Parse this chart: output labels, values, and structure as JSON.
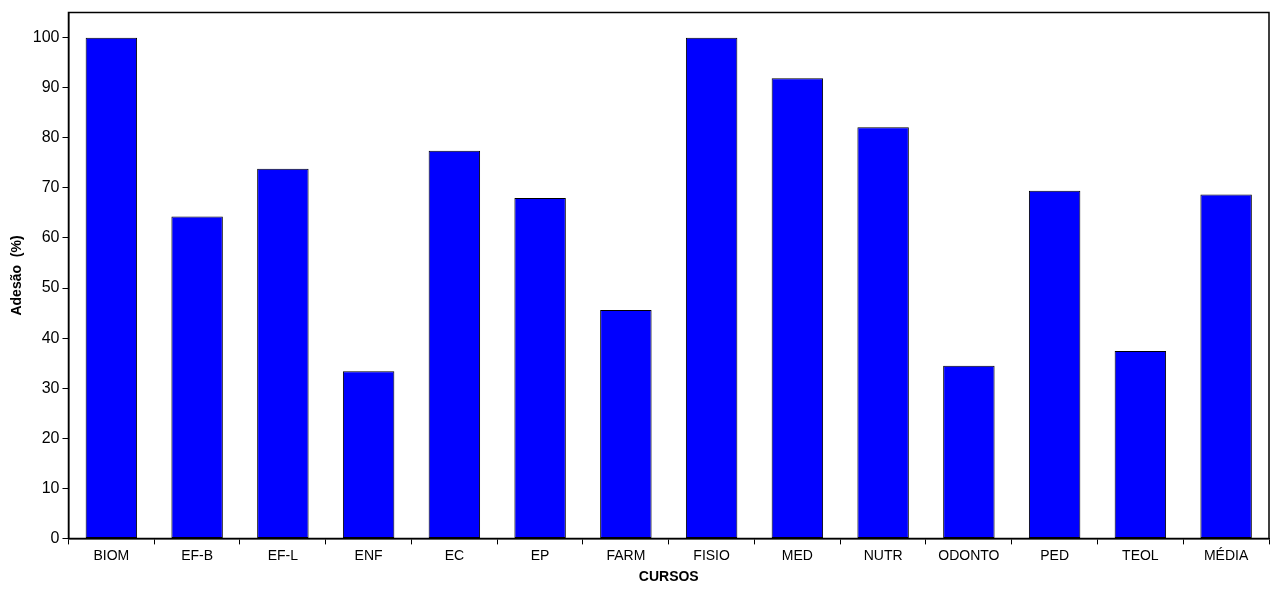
{
  "chart_data": {
    "type": "bar",
    "xlabel": "CURSOS",
    "ylabel": "Adesão  (%)",
    "categories": [
      "BIOM",
      "EF-B",
      "EF-L",
      "ENF",
      "EC",
      "EP",
      "FARM",
      "FISIO",
      "MED",
      "NUTR",
      "ODONTO",
      "PED",
      "TEOL",
      "MÉDIA"
    ],
    "values": [
      100,
      64.3,
      73.8,
      33.4,
      77.4,
      68.0,
      45.6,
      100,
      91.9,
      82.1,
      34.5,
      69.4,
      37.4,
      68.7
    ],
    "color": "#0000ff",
    "ylim": [
      0,
      105
    ],
    "yticks": [
      0,
      10,
      20,
      30,
      40,
      50,
      60,
      70,
      80,
      90,
      100
    ],
    "grid": false,
    "legend": false
  }
}
